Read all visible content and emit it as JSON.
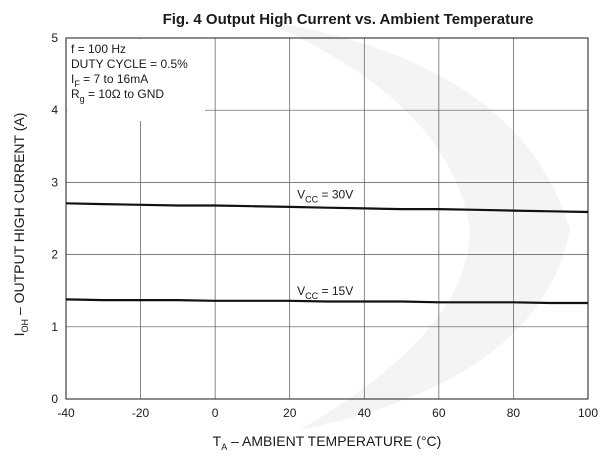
{
  "chart_data": {
    "type": "line",
    "title": "Fig. 4 Output High Current vs. Ambient Temperature",
    "xlabel": {
      "main": "T",
      "sub": "A",
      "rest": " – AMBIENT TEMPERATURE (°C)"
    },
    "ylabel": {
      "main": "I",
      "sub": "OH",
      "rest": " – OUTPUT HIGH CURRENT (A)"
    },
    "xlim": [
      -40,
      100
    ],
    "ylim": [
      0,
      5
    ],
    "xticks": [
      "-40",
      "-20",
      "0",
      "20",
      "40",
      "60",
      "80",
      "100"
    ],
    "yticks": [
      "0",
      "1",
      "2",
      "3",
      "4",
      "5"
    ],
    "grid": true,
    "conditions": [
      {
        "main": "f = 100 Hz",
        "sub": "",
        "rest": ""
      },
      {
        "main": "DUTY CYCLE = 0.5%",
        "sub": "",
        "rest": ""
      },
      {
        "main": "I",
        "sub": "F",
        "rest": " = 7 to 16mA"
      },
      {
        "main": "R",
        "sub": "g",
        "rest": " = 10Ω to GND"
      }
    ],
    "series": [
      {
        "label": {
          "main": "V",
          "sub": "CC",
          "rest": " = 30V"
        },
        "label_at": [
          22,
          2.78
        ],
        "x": [
          -40,
          -30,
          -20,
          -10,
          0,
          10,
          20,
          30,
          40,
          50,
          60,
          70,
          80,
          90,
          100
        ],
        "y": [
          2.71,
          2.7,
          2.69,
          2.68,
          2.68,
          2.67,
          2.66,
          2.65,
          2.64,
          2.63,
          2.63,
          2.62,
          2.61,
          2.6,
          2.59
        ]
      },
      {
        "label": {
          "main": "V",
          "sub": "CC",
          "rest": " = 15V"
        },
        "label_at": [
          22,
          1.44
        ],
        "x": [
          -40,
          -30,
          -20,
          -10,
          0,
          10,
          20,
          30,
          40,
          50,
          60,
          70,
          80,
          90,
          100
        ],
        "y": [
          1.38,
          1.37,
          1.37,
          1.37,
          1.36,
          1.36,
          1.36,
          1.35,
          1.35,
          1.35,
          1.34,
          1.34,
          1.34,
          1.33,
          1.33
        ]
      }
    ]
  }
}
